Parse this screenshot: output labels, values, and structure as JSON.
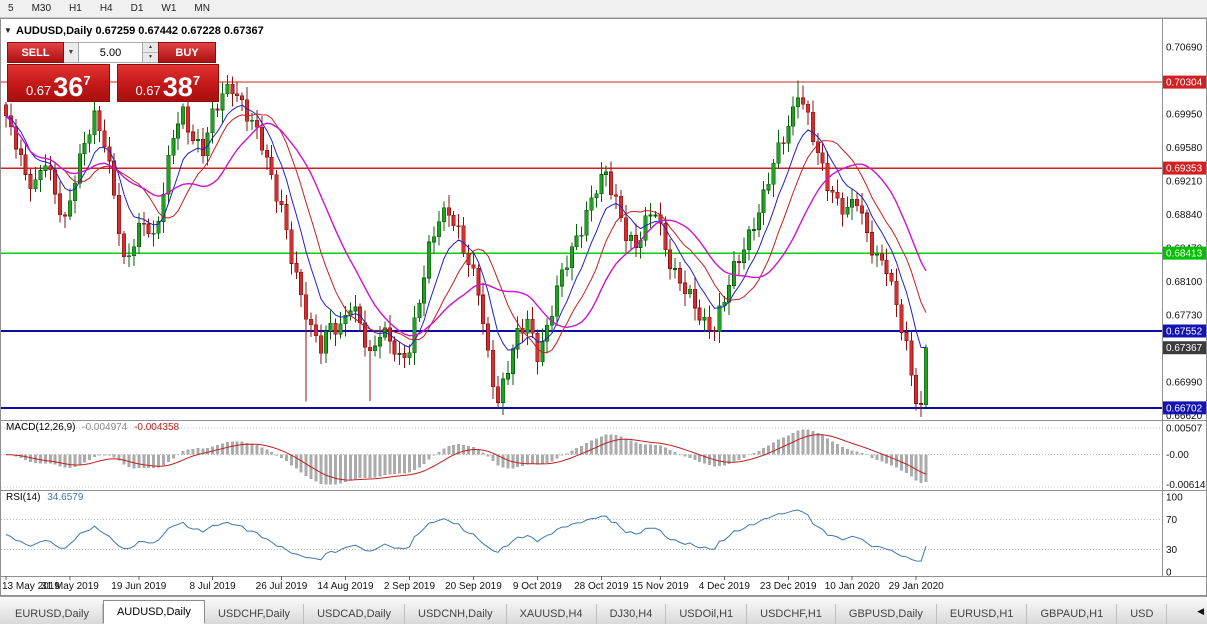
{
  "toolbar": {
    "timeframes": [
      "5",
      "M30",
      "H1",
      "H4",
      "D1",
      "W1",
      "MN"
    ]
  },
  "chart": {
    "symbol_period": "AUDUSD,Daily",
    "ohlc_text": "0.67259 0.67442 0.67228 0.67367"
  },
  "icons": {
    "collapse": "▼",
    "dropdown": "▼",
    "spin_up": "▲",
    "spin_down": "▼",
    "tab_scroll_left": "◀"
  },
  "trade_panel": {
    "sell_label": "SELL",
    "buy_label": "BUY",
    "volume": "5.00",
    "sell_price_prefix": "0.67",
    "sell_price_big": "36",
    "sell_price_sup": "7",
    "buy_price_prefix": "0.67",
    "buy_price_big": "38",
    "buy_price_sup": "7"
  },
  "price_axis": {
    "labels": [
      {
        "price": 0.7069,
        "text": "0.70690"
      },
      {
        "price": 0.6995,
        "text": "0.69950"
      },
      {
        "price": 0.6958,
        "text": "0.69580"
      },
      {
        "price": 0.6921,
        "text": "0.69210"
      },
      {
        "price": 0.6884,
        "text": "0.68840"
      },
      {
        "price": 0.6847,
        "text": "0.68470"
      },
      {
        "price": 0.681,
        "text": "0.68100"
      },
      {
        "price": 0.6773,
        "text": "0.67730"
      },
      {
        "price": 0.6699,
        "text": "0.66990"
      },
      {
        "price": 0.6662,
        "text": "0.66620"
      }
    ],
    "badges": [
      {
        "price": 0.70304,
        "text": "0.70304",
        "bg": "#d22020"
      },
      {
        "price": 0.69353,
        "text": "0.69353",
        "bg": "#d22020"
      },
      {
        "price": 0.68413,
        "text": "0.68413",
        "bg": "#00c000"
      },
      {
        "price": 0.67552,
        "text": "0.67552",
        "bg": "#1414b4"
      },
      {
        "price": 0.67367,
        "text": "0.67367",
        "bg": "#3c3c3c"
      },
      {
        "price": 0.66702,
        "text": "0.66702",
        "bg": "#1414b4"
      }
    ]
  },
  "macd": {
    "name": "MACD(12,26,9)",
    "value_main": "-0.004974",
    "value_signal": "-0.004358",
    "axis": [
      {
        "v": 0.00507,
        "text": "0.00507"
      },
      {
        "v": 0,
        "text": "-0.00"
      },
      {
        "v": -0.00614,
        "text": "-0.00614"
      }
    ]
  },
  "rsi": {
    "name": "RSI(14)",
    "value": "34.6579",
    "axis": [
      {
        "v": 100,
        "text": "100"
      },
      {
        "v": 70,
        "text": "70"
      },
      {
        "v": 30,
        "text": "30"
      },
      {
        "v": 0,
        "text": "0"
      }
    ]
  },
  "tabs": {
    "scroll_left_glyph": "◀",
    "items": [
      {
        "label": "EURUSD,Daily",
        "active": false
      },
      {
        "label": "AUDUSD,Daily",
        "active": true
      },
      {
        "label": "USDCHF,Daily",
        "active": false
      },
      {
        "label": "USDCAD,Daily",
        "active": false
      },
      {
        "label": "USDCNH,Daily",
        "active": false
      },
      {
        "label": "XAUUSD,H4",
        "active": false
      },
      {
        "label": "DJ30,H4",
        "active": false
      },
      {
        "label": "USDOil,H1",
        "active": false
      },
      {
        "label": "USDCHF,H1",
        "active": false
      },
      {
        "label": "GBPUSD,Daily",
        "active": false
      },
      {
        "label": "EURUSD,H1",
        "active": false
      },
      {
        "label": "GBPAUD,H1",
        "active": false
      },
      {
        "label": "USD",
        "active": false
      }
    ]
  },
  "chart_data": {
    "type": "candlestick",
    "title": "AUDUSD,Daily",
    "current_bar_ohlc": {
      "open": 0.67259,
      "high": 0.67442,
      "low": 0.67228,
      "close": 0.67367
    },
    "last_close": 0.67367,
    "bars": 188,
    "y_range": [
      0.6659,
      0.7088
    ],
    "close_anchors": [
      [
        0,
        0.6984
      ],
      [
        2,
        0.6962
      ],
      [
        4,
        0.693
      ],
      [
        6,
        0.692
      ],
      [
        8,
        0.6942
      ],
      [
        10,
        0.6902
      ],
      [
        12,
        0.6878
      ],
      [
        14,
        0.693
      ],
      [
        16,
        0.6962
      ],
      [
        18,
        0.6986
      ],
      [
        20,
        0.6965
      ],
      [
        22,
        0.6913
      ],
      [
        24,
        0.683
      ],
      [
        26,
        0.6848
      ],
      [
        28,
        0.6876
      ],
      [
        30,
        0.686
      ],
      [
        32,
        0.6912
      ],
      [
        34,
        0.697
      ],
      [
        36,
        0.6992
      ],
      [
        38,
        0.697
      ],
      [
        40,
        0.696
      ],
      [
        42,
        0.6992
      ],
      [
        44,
        0.7012
      ],
      [
        46,
        0.7026
      ],
      [
        48,
        0.701
      ],
      [
        50,
        0.6986
      ],
      [
        52,
        0.6958
      ],
      [
        54,
        0.6922
      ],
      [
        56,
        0.6896
      ],
      [
        58,
        0.684
      ],
      [
        60,
        0.6788
      ],
      [
        62,
        0.6754
      ],
      [
        64,
        0.6742
      ],
      [
        66,
        0.6766
      ],
      [
        68,
        0.6754
      ],
      [
        70,
        0.678
      ],
      [
        72,
        0.6766
      ],
      [
        74,
        0.6731
      ],
      [
        76,
        0.6754
      ],
      [
        78,
        0.6741
      ],
      [
        80,
        0.6722
      ],
      [
        82,
        0.6741
      ],
      [
        84,
        0.6791
      ],
      [
        86,
        0.6841
      ],
      [
        88,
        0.6877
      ],
      [
        90,
        0.6892
      ],
      [
        92,
        0.6867
      ],
      [
        94,
        0.6827
      ],
      [
        96,
        0.6797
      ],
      [
        98,
        0.6729
      ],
      [
        100,
        0.6681
      ],
      [
        102,
        0.6714
      ],
      [
        104,
        0.6747
      ],
      [
        106,
        0.6767
      ],
      [
        108,
        0.6734
      ],
      [
        110,
        0.6757
      ],
      [
        112,
        0.6797
      ],
      [
        114,
        0.6831
      ],
      [
        116,
        0.6861
      ],
      [
        118,
        0.6887
      ],
      [
        120,
        0.6911
      ],
      [
        122,
        0.6925
      ],
      [
        124,
        0.6901
      ],
      [
        126,
        0.6867
      ],
      [
        128,
        0.6845
      ],
      [
        130,
        0.6871
      ],
      [
        132,
        0.6891
      ],
      [
        134,
        0.6851
      ],
      [
        136,
        0.6817
      ],
      [
        138,
        0.6797
      ],
      [
        140,
        0.6782
      ],
      [
        142,
        0.6767
      ],
      [
        144,
        0.6761
      ],
      [
        146,
        0.6787
      ],
      [
        148,
        0.6821
      ],
      [
        150,
        0.6851
      ],
      [
        152,
        0.6877
      ],
      [
        154,
        0.6901
      ],
      [
        156,
        0.6937
      ],
      [
        158,
        0.6971
      ],
      [
        160,
        0.7001
      ],
      [
        161,
        0.7023
      ],
      [
        163,
        0.6987
      ],
      [
        165,
        0.6947
      ],
      [
        167,
        0.6921
      ],
      [
        169,
        0.6901
      ],
      [
        171,
        0.6887
      ],
      [
        173,
        0.6897
      ],
      [
        175,
        0.6861
      ],
      [
        177,
        0.6841
      ],
      [
        179,
        0.6827
      ],
      [
        181,
        0.6777
      ],
      [
        183,
        0.6737
      ],
      [
        184,
        0.6707
      ],
      [
        185,
        0.6687
      ],
      [
        186,
        0.6672
      ],
      [
        187,
        0.6737
      ]
    ],
    "wick_specials": [
      {
        "bar": 46,
        "high": 0.7031
      },
      {
        "bar": 61,
        "low": 0.6677
      },
      {
        "bar": 74,
        "low": 0.6678
      },
      {
        "bar": 100,
        "low": 0.667
      },
      {
        "bar": 161,
        "high": 0.7032
      },
      {
        "bar": 186,
        "low": 0.6662
      }
    ],
    "levels": [
      {
        "price": 0.70304,
        "color": "#d22020",
        "width": 1.3
      },
      {
        "price": 0.69353,
        "color": "#d22020",
        "width": 1.3
      },
      {
        "price": 0.68413,
        "color": "#00d200",
        "width": 1.6
      },
      {
        "price": 0.67552,
        "color": "#0c0ca8",
        "width": 2
      },
      {
        "price": 0.66702,
        "color": "#0c0ca8",
        "width": 2
      }
    ],
    "moving_averages": [
      {
        "name": "fast",
        "type": "ema",
        "period": 8,
        "color": "#2020c8",
        "width": 1
      },
      {
        "name": "medium",
        "type": "sma",
        "period": 13,
        "color": "#c02020",
        "width": 1
      },
      {
        "name": "slow",
        "type": "sma",
        "period": 21,
        "color": "#cc14cc",
        "width": 1.4
      }
    ],
    "indicators": [
      {
        "name": "MACD",
        "params": "12,26,9",
        "values": [
          -0.004974,
          -0.004358
        ]
      },
      {
        "name": "RSI",
        "params": "14",
        "value": 34.6579
      }
    ],
    "x_labels": [
      {
        "bar": 0,
        "text": "13 May 2019"
      },
      {
        "bar": 13,
        "text": "31 May 2019"
      },
      {
        "bar": 27,
        "text": "19 Jun 2019"
      },
      {
        "bar": 42,
        "text": "8 Jul 2019"
      },
      {
        "bar": 56,
        "text": "26 Jul 2019"
      },
      {
        "bar": 69,
        "text": "14 Aug 2019"
      },
      {
        "bar": 82,
        "text": "2 Sep 2019"
      },
      {
        "bar": 95,
        "text": "20 Sep 2019"
      },
      {
        "bar": 108,
        "text": "9 Oct 2019"
      },
      {
        "bar": 121,
        "text": "28 Oct 2019"
      },
      {
        "bar": 133,
        "text": "15 Nov 2019"
      },
      {
        "bar": 146,
        "text": "4 Dec 2019"
      },
      {
        "bar": 159,
        "text": "23 Dec 2019"
      },
      {
        "bar": 172,
        "text": "10 Jan 2020"
      },
      {
        "bar": 185,
        "text": "29 Jan 2020"
      }
    ],
    "colors": {
      "bull": "#21a121",
      "bull_border": "#0a5f0a",
      "bear": "#d23030",
      "bear_border": "#8c1010",
      "macd_hist": "#ababab",
      "macd_signal": "#c02020",
      "rsi_line": "#3c78b4"
    }
  }
}
